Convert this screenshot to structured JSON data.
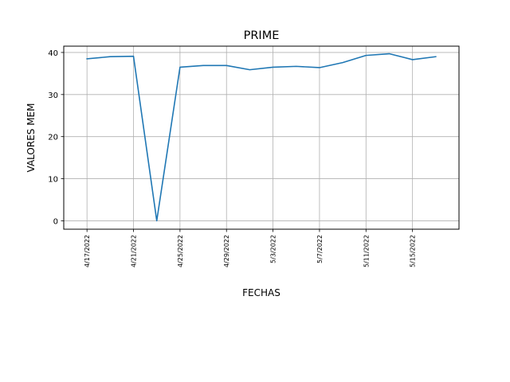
{
  "chart_data": {
    "type": "line",
    "title": "PRIME",
    "xlabel": "FECHAS",
    "ylabel": "VALORES MEM",
    "grid": true,
    "x": [
      "4/17/2022",
      "4/19/2022",
      "4/21/2022",
      "4/23/2022",
      "4/25/2022",
      "4/27/2022",
      "4/29/2022",
      "5/1/2022",
      "5/3/2022",
      "5/5/2022",
      "5/7/2022",
      "5/9/2022",
      "5/11/2022",
      "5/13/2022",
      "5/15/2022",
      "5/17/2022"
    ],
    "xticks": [
      "4/17/2022",
      "4/21/2022",
      "4/25/2022",
      "4/29/2022",
      "5/3/2022",
      "5/7/2022",
      "5/11/2022",
      "5/15/2022"
    ],
    "xlim": [
      "4/15/2022",
      "5/19/2022"
    ],
    "yticks": [
      0,
      10,
      20,
      30,
      40
    ],
    "ylim": [
      -2,
      41.5
    ],
    "series": [
      {
        "color": "#1f77b4",
        "values": [
          38.5,
          39.0,
          39.1,
          0.0,
          36.5,
          36.9,
          36.9,
          35.9,
          36.5,
          36.7,
          36.4,
          37.6,
          39.3,
          39.7,
          38.3,
          39.0
        ]
      }
    ]
  }
}
